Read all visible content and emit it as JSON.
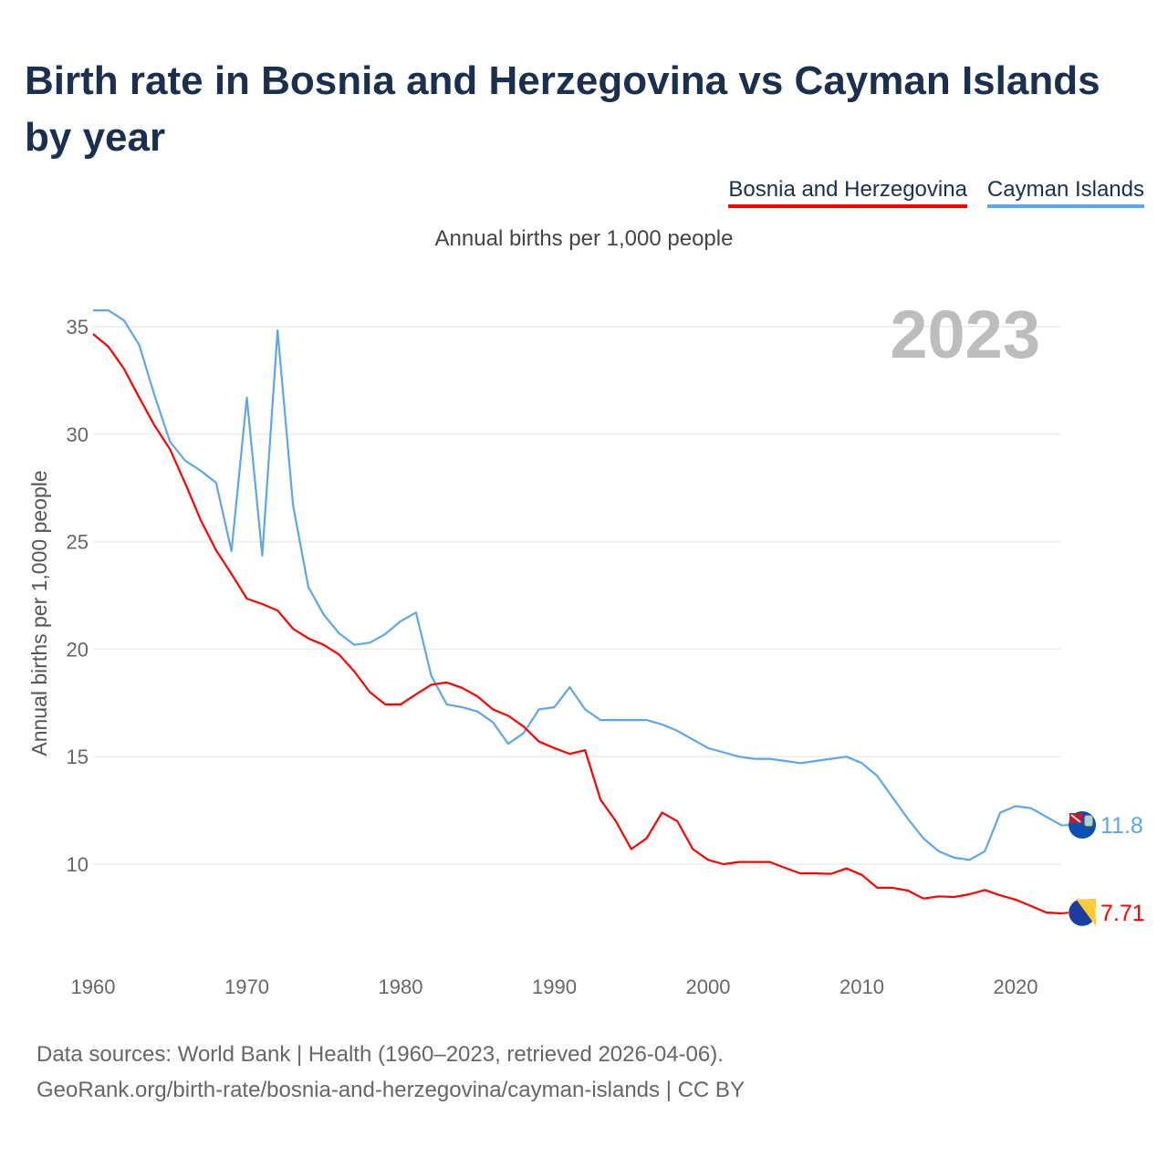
{
  "title": "Birth rate in Bosnia and Herzegovina vs Cayman Islands by year",
  "subtitle": "Annual births per 1,000 people",
  "footer": {
    "line1": "Data sources: World Bank | Health (1960–2023, retrieved 2026-04-06).",
    "line2": "GeoRank.org/birth-rate/bosnia-and-herzegovina/cayman-islands | CC BY"
  },
  "chart_data": {
    "type": "line",
    "title": "Birth rate in Bosnia and Herzegovina vs Cayman Islands by year",
    "xlabel": "",
    "ylabel": "Annual births per 1,000 people",
    "year_label": "2023",
    "xlim": [
      1960,
      2023
    ],
    "ylim": [
      7,
      36.6
    ],
    "xticks": [
      1960,
      1970,
      1980,
      1990,
      2000,
      2010,
      2020
    ],
    "yticks": [
      10,
      15,
      20,
      25,
      30,
      35
    ],
    "grid": true,
    "legend_position": "top-right",
    "x": [
      1960,
      1961,
      1962,
      1963,
      1964,
      1965,
      1966,
      1967,
      1968,
      1969,
      1970,
      1971,
      1972,
      1973,
      1974,
      1975,
      1976,
      1977,
      1978,
      1979,
      1980,
      1981,
      1982,
      1983,
      1984,
      1985,
      1986,
      1987,
      1988,
      1989,
      1990,
      1991,
      1992,
      1993,
      1994,
      1995,
      1996,
      1997,
      1998,
      1999,
      2000,
      2001,
      2002,
      2003,
      2004,
      2005,
      2006,
      2007,
      2008,
      2009,
      2010,
      2011,
      2012,
      2013,
      2014,
      2015,
      2016,
      2017,
      2018,
      2019,
      2020,
      2021,
      2022,
      2023
    ],
    "series": [
      {
        "name": "Bosnia and Herzegovina",
        "color": "#ff0000",
        "end_label": "7.71",
        "values": [
          34.66,
          34.07,
          33.05,
          31.7,
          30.4,
          29.3,
          27.7,
          26.0,
          24.6,
          23.5,
          22.35,
          22.1,
          21.8,
          20.95,
          20.5,
          20.2,
          19.75,
          18.95,
          18.0,
          17.43,
          17.43,
          17.9,
          18.35,
          18.45,
          18.2,
          17.8,
          17.2,
          16.9,
          16.4,
          15.7,
          15.4,
          15.13,
          15.3,
          13.0,
          12.0,
          10.7,
          11.2,
          12.4,
          12.0,
          10.7,
          10.2,
          10.0,
          10.1,
          10.1,
          10.1,
          9.83,
          9.57,
          9.57,
          9.55,
          9.8,
          9.5,
          8.9,
          8.9,
          8.77,
          8.4,
          8.5,
          8.47,
          8.6,
          8.8,
          8.55,
          8.35,
          8.05,
          7.75,
          7.71
        ]
      },
      {
        "name": "Cayman Islands",
        "color": "#5ea6ea",
        "end_label": "11.8",
        "values": [
          35.76,
          35.76,
          35.3,
          34.15,
          31.8,
          29.65,
          28.76,
          28.3,
          27.74,
          24.56,
          31.7,
          24.35,
          34.83,
          26.7,
          22.9,
          21.6,
          20.74,
          20.2,
          20.3,
          20.7,
          21.3,
          21.7,
          18.75,
          17.43,
          17.3,
          17.1,
          16.6,
          15.6,
          16.1,
          17.2,
          17.3,
          18.23,
          17.2,
          16.7,
          16.7,
          16.7,
          16.7,
          16.5,
          16.2,
          15.8,
          15.4,
          15.2,
          15.0,
          14.9,
          14.9,
          14.8,
          14.7,
          14.8,
          14.9,
          15.0,
          14.7,
          14.1,
          13.1,
          12.1,
          11.2,
          10.6,
          10.3,
          10.2,
          10.6,
          12.4,
          12.7,
          12.6,
          12.2,
          11.8
        ]
      }
    ]
  }
}
